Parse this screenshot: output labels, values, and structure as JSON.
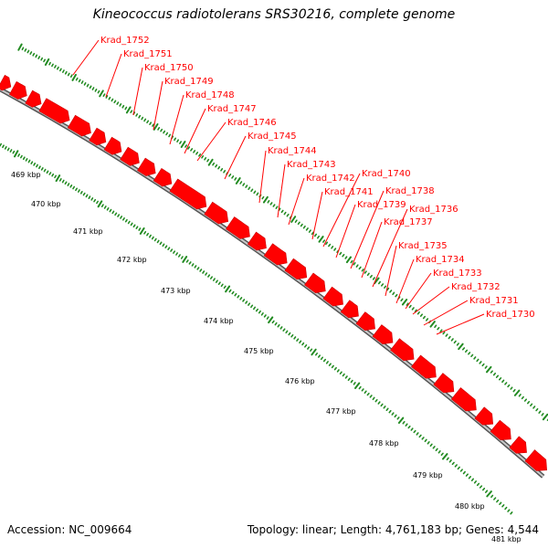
{
  "title": "Kineococcus radiotolerans SRS30216, complete genome",
  "footer": {
    "accession": "Accession: NC_009664",
    "stats": "Topology: linear; Length: 4,761,183 bp; Genes: 4,544"
  },
  "colors": {
    "gene": "#ff0000",
    "gene_outline": "#cc0000",
    "backbone": "#888888",
    "tick": "#228b22",
    "label": "#ff0000"
  },
  "scale_ticks": [
    "469 kbp",
    "470 kbp",
    "471 kbp",
    "472 kbp",
    "473 kbp",
    "474 kbp",
    "475 kbp",
    "476 kbp",
    "477 kbp",
    "478 kbp",
    "479 kbp",
    "480 kbp",
    "481 kbp"
  ],
  "genes": [
    "Krad_1752",
    "Krad_1751",
    "Krad_1750",
    "Krad_1749",
    "Krad_1748",
    "Krad_1747",
    "Krad_1746",
    "Krad_1745",
    "Krad_1744",
    "Krad_1743",
    "Krad_1742",
    "Krad_1741",
    "Krad_1740",
    "Krad_1739",
    "Krad_1738",
    "Krad_1737",
    "Krad_1736",
    "Krad_1735",
    "Krad_1734",
    "Krad_1733",
    "Krad_1732",
    "Krad_1731",
    "Krad_1730"
  ]
}
